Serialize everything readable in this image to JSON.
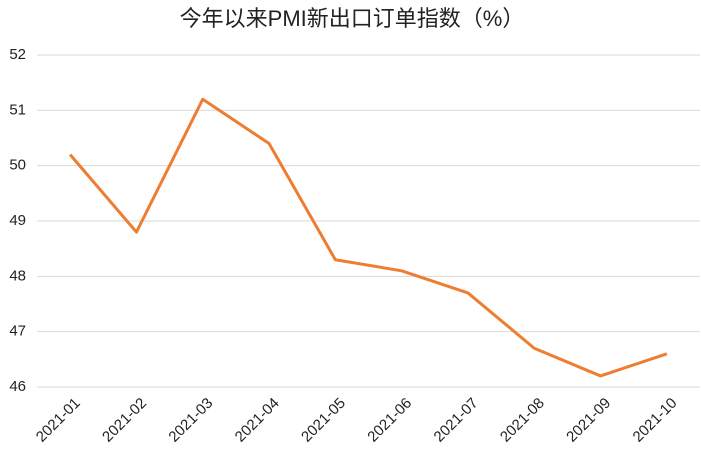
{
  "chart_data": {
    "type": "line",
    "title": "今年以来PMI新出口订单指数（%）",
    "categories": [
      "2021-01",
      "2021-02",
      "2021-03",
      "2021-04",
      "2021-05",
      "2021-06",
      "2021-07",
      "2021-08",
      "2021-09",
      "2021-10"
    ],
    "values": [
      50.2,
      48.8,
      51.2,
      50.4,
      48.3,
      48.1,
      47.7,
      46.7,
      46.2,
      46.6
    ],
    "color": "#ed7d31",
    "ylim": [
      46,
      52
    ],
    "yticks": [
      46,
      47,
      48,
      49,
      50,
      51,
      52
    ],
    "grid": true
  }
}
